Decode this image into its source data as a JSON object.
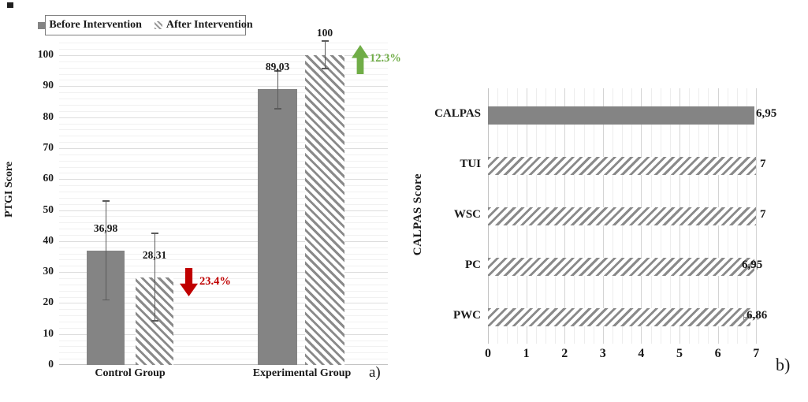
{
  "figure": {
    "marker_color": "#1f1f1f",
    "colors": {
      "bar_gray": "#848484",
      "hatch_gray": "#8a8a8a",
      "grid_major": "#dddddd",
      "grid_minor": "#f1f1f1",
      "axis_line": "#c3c3c3",
      "error_bar": "#5a5a5a",
      "increase_green": "#70ad47",
      "decrease_red": "#c00000",
      "legend_border": "#7d7d7d"
    }
  },
  "chart_data": [
    {
      "type": "bar",
      "panel_label": "a)",
      "ylabel": "PTGI Score",
      "legend_position": "top",
      "categories": [
        "Control Group",
        "Experimental Group"
      ],
      "series": [
        {
          "name": "Before Intervention",
          "pattern": "solid",
          "values": [
            36.98,
            89.03
          ],
          "value_labels": [
            "36,98",
            "89,03"
          ]
        },
        {
          "name": "After Intervention",
          "pattern": "hatch-back",
          "values": [
            28.31,
            100
          ],
          "value_labels": [
            "28,31",
            "100"
          ]
        }
      ],
      "error_bars": [
        {
          "bar": "control-before",
          "low": 21.0,
          "high": 53.0
        },
        {
          "bar": "control-after",
          "low": 14.2,
          "high": 42.5
        },
        {
          "bar": "experimental-before",
          "low": 82.7,
          "high": 94.9
        },
        {
          "bar": "experimental-after",
          "low": 95.7,
          "high": 104.6
        }
      ],
      "annotations": [
        {
          "text": "23.4%",
          "direction": "down",
          "color": "#c00000",
          "meaning": "decrease after intervention in control group"
        },
        {
          "text": "12.3%",
          "direction": "up",
          "color": "#70ad47",
          "meaning": "increase after intervention in experimental group"
        }
      ],
      "ylim": [
        0,
        105
      ],
      "yticks": [
        0,
        10,
        20,
        30,
        40,
        50,
        60,
        70,
        80,
        90,
        100
      ],
      "grid": "horizontal major every 10, minor every 2"
    },
    {
      "type": "horizontal-bar",
      "panel_label": "b)",
      "axis_title": "CALPAS Score",
      "categories": [
        "CALPAS",
        "TUI",
        "WSC",
        "PC",
        "PWC"
      ],
      "values": [
        6.95,
        7,
        7,
        6.95,
        6.86
      ],
      "value_labels": [
        "6,95",
        "7",
        "7",
        "6,95",
        "6,86"
      ],
      "patterns": [
        "solid",
        "hatch-forward",
        "hatch-forward",
        "hatch-forward",
        "hatch-forward"
      ],
      "error_bars": [
        null,
        null,
        null,
        {
          "low": 6.8,
          "high": 7.02
        },
        {
          "low": 6.67,
          "high": 7.05
        }
      ],
      "xlim": [
        0,
        7.2
      ],
      "xticks": [
        0,
        1,
        2,
        3,
        4,
        5,
        6,
        7
      ],
      "grid": "vertical major every 1, minor every 0.25"
    }
  ]
}
